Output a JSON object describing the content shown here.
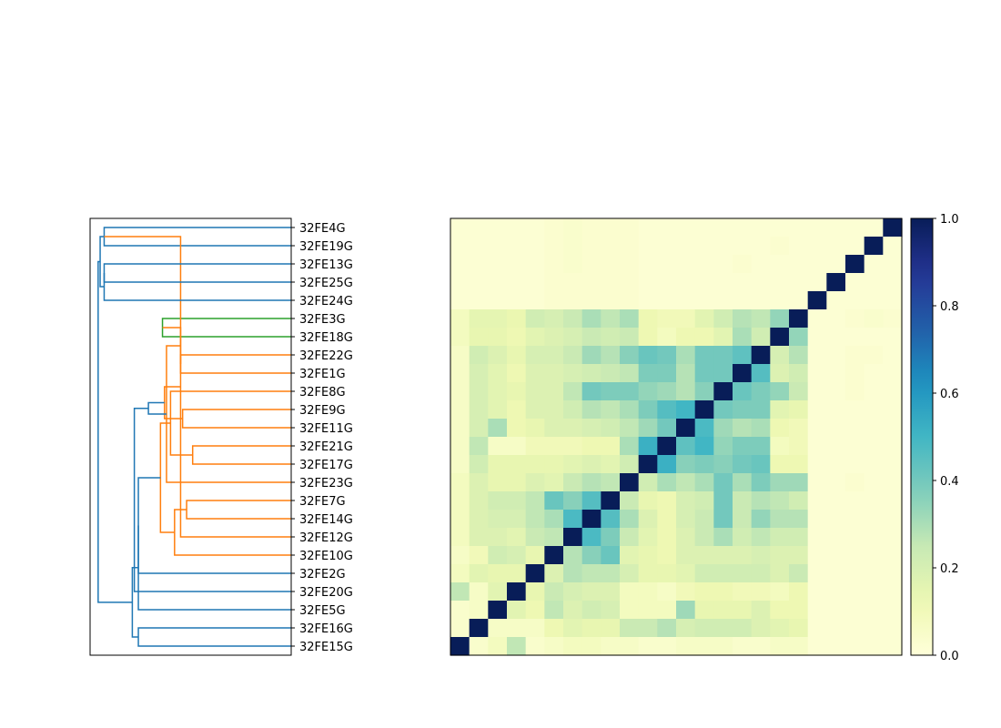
{
  "chart_data": [
    {
      "type": "dendrogram",
      "orientation": "left",
      "leaf_labels_top_to_bottom": [
        "32FE4G",
        "32FE19G",
        "32FE13G",
        "32FE25G",
        "32FE24G",
        "32FE3G",
        "32FE18G",
        "32FE22G",
        "32FE1G",
        "32FE8G",
        "32FE9G",
        "32FE11G",
        "32FE21G",
        "32FE17G",
        "32FE23G",
        "32FE7G",
        "32FE14G",
        "32FE12G",
        "32FE10G",
        "32FE2G",
        "32FE20G",
        "32FE5G",
        "32FE16G",
        "32FE15G"
      ],
      "cluster_colors": {
        "blue": "#1f77b4",
        "orange": "#ff7f0e",
        "green": "#2ca02c"
      },
      "links": [
        {
          "a": 0,
          "b": 1,
          "h": 0.93,
          "color": "blue"
        },
        {
          "a": 5,
          "b": 6,
          "h": 0.64,
          "color": "green"
        },
        {
          "a": 7,
          "b": 8,
          "h": 0.55,
          "color": "orange"
        },
        {
          "a": 12,
          "b": 13,
          "h": 0.49,
          "color": "orange"
        },
        {
          "a": 15,
          "b": 16,
          "h": 0.52,
          "color": "orange"
        },
        {
          "a": 10,
          "b": 11,
          "h": 0.54,
          "color": "orange"
        },
        {
          "a": 24,
          "b": 17,
          "h": 0.55,
          "color": "orange"
        },
        {
          "a": 25,
          "b": 26,
          "h": 0.55,
          "color": "orange"
        },
        {
          "a": 27,
          "b": 9,
          "h": 0.6,
          "color": "orange"
        },
        {
          "a": 28,
          "b": 18,
          "h": 0.58,
          "color": "orange"
        },
        {
          "a": 31,
          "b": 14,
          "h": 0.62,
          "color": "orange"
        },
        {
          "a": 29,
          "b": 30,
          "h": 0.63,
          "color": "orange"
        },
        {
          "a": 33,
          "b": 32,
          "h": 0.65,
          "color": "orange"
        },
        {
          "a": 34,
          "b": 35,
          "h": 0.71,
          "color": "blue"
        },
        {
          "a": 36,
          "b": 19,
          "h": 0.76,
          "color": "blue"
        },
        {
          "a": 22,
          "b": 23,
          "h": 0.76,
          "color": "blue"
        },
        {
          "a": 21,
          "b": 38,
          "h": 0.76,
          "color": "blue"
        },
        {
          "a": 20,
          "b": 37,
          "h": 0.78,
          "color": "blue"
        },
        {
          "a": 39,
          "b": 40,
          "h": 0.79,
          "color": "blue"
        },
        {
          "a": 2,
          "b": 3,
          "h": 0.93,
          "color": "blue"
        },
        {
          "a": 43,
          "b": 4,
          "h": 0.93,
          "color": "blue"
        },
        {
          "a": 24,
          "b": 44,
          "h": 0.95,
          "color": "blue"
        },
        {
          "a": 45,
          "b": 42,
          "h": 0.96,
          "color": "blue"
        }
      ]
    },
    {
      "type": "heatmap",
      "colormap": "YlGnBu",
      "vmin": 0,
      "vmax": 1,
      "colorbar_ticks": [
        "0.0",
        "0.2",
        "0.4",
        "0.6",
        "0.8",
        "1.0"
      ],
      "row_order_top_to_bottom": [
        "32FE4G",
        "32FE19G",
        "32FE13G",
        "32FE25G",
        "32FE24G",
        "32FE3G",
        "32FE18G",
        "32FE22G",
        "32FE1G",
        "32FE8G",
        "32FE9G",
        "32FE11G",
        "32FE21G",
        "32FE17G",
        "32FE23G",
        "32FE7G",
        "32FE14G",
        "32FE12G",
        "32FE10G",
        "32FE2G",
        "32FE20G",
        "32FE5G",
        "32FE16G",
        "32FE15G"
      ],
      "column_order_left_to_right": [
        "32FE15G",
        "32FE16G",
        "32FE5G",
        "32FE20G",
        "32FE2G",
        "32FE10G",
        "32FE12G",
        "32FE14G",
        "32FE7G",
        "32FE23G",
        "32FE17G",
        "32FE21G",
        "32FE11G",
        "32FE9G",
        "32FE8G",
        "32FE1G",
        "32FE22G",
        "32FE18G",
        "32FE3G",
        "32FE24G",
        "32FE25G",
        "32FE13G",
        "32FE19G",
        "32FE4G"
      ],
      "values": [
        [
          0.02,
          0.02,
          0.02,
          0.02,
          0.02,
          0.03,
          0.04,
          0.03,
          0.03,
          0.03,
          0.02,
          0.02,
          0.02,
          0.02,
          0.02,
          0.02,
          0.02,
          0.02,
          0.02,
          0.02,
          0.02,
          0.02,
          0.02,
          1.0
        ],
        [
          0.02,
          0.02,
          0.02,
          0.02,
          0.02,
          0.03,
          0.04,
          0.03,
          0.03,
          0.03,
          0.02,
          0.02,
          0.02,
          0.02,
          0.02,
          0.02,
          0.02,
          0.03,
          0.02,
          0.02,
          0.02,
          0.02,
          1.0,
          0.02
        ],
        [
          0.02,
          0.02,
          0.02,
          0.02,
          0.02,
          0.03,
          0.04,
          0.03,
          0.03,
          0.03,
          0.02,
          0.02,
          0.02,
          0.02,
          0.02,
          0.03,
          0.02,
          0.02,
          0.02,
          0.02,
          0.02,
          1.0,
          0.02,
          0.02
        ],
        [
          0.02,
          0.02,
          0.02,
          0.02,
          0.02,
          0.03,
          0.03,
          0.03,
          0.03,
          0.03,
          0.02,
          0.02,
          0.02,
          0.02,
          0.02,
          0.02,
          0.02,
          0.02,
          0.02,
          0.02,
          1.0,
          0.02,
          0.02,
          0.02
        ],
        [
          0.02,
          0.02,
          0.02,
          0.02,
          0.02,
          0.03,
          0.03,
          0.03,
          0.03,
          0.03,
          0.02,
          0.02,
          0.02,
          0.02,
          0.02,
          0.02,
          0.02,
          0.02,
          0.02,
          1.0,
          0.02,
          0.02,
          0.02,
          0.02
        ],
        [
          0.08,
          0.15,
          0.15,
          0.13,
          0.22,
          0.2,
          0.24,
          0.3,
          0.26,
          0.3,
          0.12,
          0.1,
          0.1,
          0.16,
          0.22,
          0.28,
          0.26,
          0.34,
          1.0,
          0.02,
          0.02,
          0.03,
          0.04,
          0.03
        ],
        [
          0.08,
          0.14,
          0.14,
          0.12,
          0.16,
          0.18,
          0.2,
          0.24,
          0.22,
          0.24,
          0.12,
          0.08,
          0.12,
          0.12,
          0.16,
          0.3,
          0.22,
          1.0,
          0.34,
          0.02,
          0.02,
          0.02,
          0.02,
          0.02
        ],
        [
          0.06,
          0.22,
          0.18,
          0.14,
          0.2,
          0.2,
          0.24,
          0.32,
          0.28,
          0.36,
          0.42,
          0.4,
          0.3,
          0.4,
          0.4,
          0.44,
          1.0,
          0.2,
          0.28,
          0.02,
          0.02,
          0.03,
          0.03,
          0.02
        ],
        [
          0.06,
          0.2,
          0.16,
          0.12,
          0.18,
          0.18,
          0.2,
          0.22,
          0.24,
          0.26,
          0.38,
          0.38,
          0.28,
          0.4,
          0.4,
          1.0,
          0.46,
          0.18,
          0.22,
          0.02,
          0.02,
          0.03,
          0.02,
          0.02
        ],
        [
          0.06,
          0.2,
          0.16,
          0.14,
          0.18,
          0.18,
          0.26,
          0.4,
          0.38,
          0.38,
          0.34,
          0.32,
          0.28,
          0.36,
          1.0,
          0.42,
          0.38,
          0.34,
          0.24,
          0.02,
          0.02,
          0.03,
          0.02,
          0.02
        ],
        [
          0.06,
          0.2,
          0.16,
          0.12,
          0.18,
          0.18,
          0.22,
          0.28,
          0.26,
          0.3,
          0.38,
          0.46,
          0.5,
          1.0,
          0.4,
          0.38,
          0.38,
          0.16,
          0.14,
          0.02,
          0.02,
          0.02,
          0.02,
          0.02
        ],
        [
          0.06,
          0.2,
          0.3,
          0.12,
          0.14,
          0.18,
          0.18,
          0.2,
          0.22,
          0.26,
          0.32,
          0.4,
          1.0,
          0.48,
          0.32,
          0.28,
          0.3,
          0.12,
          0.1,
          0.02,
          0.02,
          0.02,
          0.02,
          0.02
        ],
        [
          0.06,
          0.26,
          0.06,
          0.06,
          0.1,
          0.1,
          0.1,
          0.12,
          0.12,
          0.3,
          0.52,
          1.0,
          0.44,
          0.5,
          0.34,
          0.38,
          0.38,
          0.08,
          0.1,
          0.02,
          0.02,
          0.02,
          0.02,
          0.02
        ],
        [
          0.06,
          0.22,
          0.14,
          0.14,
          0.14,
          0.14,
          0.16,
          0.18,
          0.16,
          0.22,
          1.0,
          0.52,
          0.36,
          0.38,
          0.36,
          0.4,
          0.42,
          0.12,
          0.12,
          0.02,
          0.02,
          0.02,
          0.02,
          0.02
        ],
        [
          0.08,
          0.18,
          0.14,
          0.14,
          0.18,
          0.16,
          0.24,
          0.28,
          0.26,
          1.0,
          0.22,
          0.3,
          0.26,
          0.3,
          0.4,
          0.3,
          0.38,
          0.32,
          0.32,
          0.02,
          0.02,
          0.03,
          0.02,
          0.02
        ],
        [
          0.08,
          0.18,
          0.22,
          0.22,
          0.26,
          0.42,
          0.36,
          0.46,
          1.0,
          0.24,
          0.14,
          0.12,
          0.2,
          0.22,
          0.4,
          0.24,
          0.28,
          0.26,
          0.22,
          0.02,
          0.02,
          0.02,
          0.02,
          0.02
        ],
        [
          0.08,
          0.18,
          0.2,
          0.2,
          0.26,
          0.3,
          0.48,
          1.0,
          0.46,
          0.3,
          0.18,
          0.12,
          0.2,
          0.24,
          0.4,
          0.24,
          0.34,
          0.28,
          0.28,
          0.02,
          0.02,
          0.02,
          0.02,
          0.02
        ],
        [
          0.08,
          0.18,
          0.18,
          0.16,
          0.24,
          0.26,
          1.0,
          0.48,
          0.38,
          0.24,
          0.16,
          0.12,
          0.18,
          0.24,
          0.3,
          0.22,
          0.26,
          0.22,
          0.22,
          0.02,
          0.02,
          0.02,
          0.02,
          0.02
        ],
        [
          0.06,
          0.1,
          0.22,
          0.2,
          0.14,
          1.0,
          0.28,
          0.36,
          0.42,
          0.16,
          0.14,
          0.12,
          0.18,
          0.18,
          0.18,
          0.18,
          0.2,
          0.18,
          0.18,
          0.02,
          0.02,
          0.02,
          0.02,
          0.02
        ],
        [
          0.08,
          0.16,
          0.14,
          0.14,
          1.0,
          0.18,
          0.28,
          0.26,
          0.26,
          0.2,
          0.14,
          0.14,
          0.16,
          0.22,
          0.22,
          0.22,
          0.22,
          0.18,
          0.24,
          0.02,
          0.02,
          0.02,
          0.02,
          0.02
        ],
        [
          0.26,
          0.06,
          0.16,
          1.0,
          0.14,
          0.24,
          0.2,
          0.18,
          0.18,
          0.08,
          0.08,
          0.06,
          0.1,
          0.12,
          0.12,
          0.1,
          0.1,
          0.08,
          0.12,
          0.02,
          0.02,
          0.02,
          0.02,
          0.02
        ],
        [
          0.04,
          0.06,
          1.0,
          0.16,
          0.12,
          0.26,
          0.18,
          0.22,
          0.2,
          0.08,
          0.08,
          0.08,
          0.32,
          0.14,
          0.14,
          0.14,
          0.18,
          0.12,
          0.12,
          0.02,
          0.02,
          0.02,
          0.02,
          0.02
        ],
        [
          0.04,
          1.0,
          0.06,
          0.06,
          0.06,
          0.12,
          0.16,
          0.14,
          0.14,
          0.24,
          0.24,
          0.28,
          0.2,
          0.22,
          0.22,
          0.22,
          0.18,
          0.16,
          0.14,
          0.02,
          0.02,
          0.02,
          0.02,
          0.02
        ],
        [
          1.0,
          0.04,
          0.08,
          0.26,
          0.04,
          0.06,
          0.08,
          0.08,
          0.06,
          0.06,
          0.04,
          0.04,
          0.06,
          0.06,
          0.06,
          0.04,
          0.04,
          0.06,
          0.06,
          0.02,
          0.02,
          0.02,
          0.02,
          0.02
        ]
      ]
    }
  ]
}
